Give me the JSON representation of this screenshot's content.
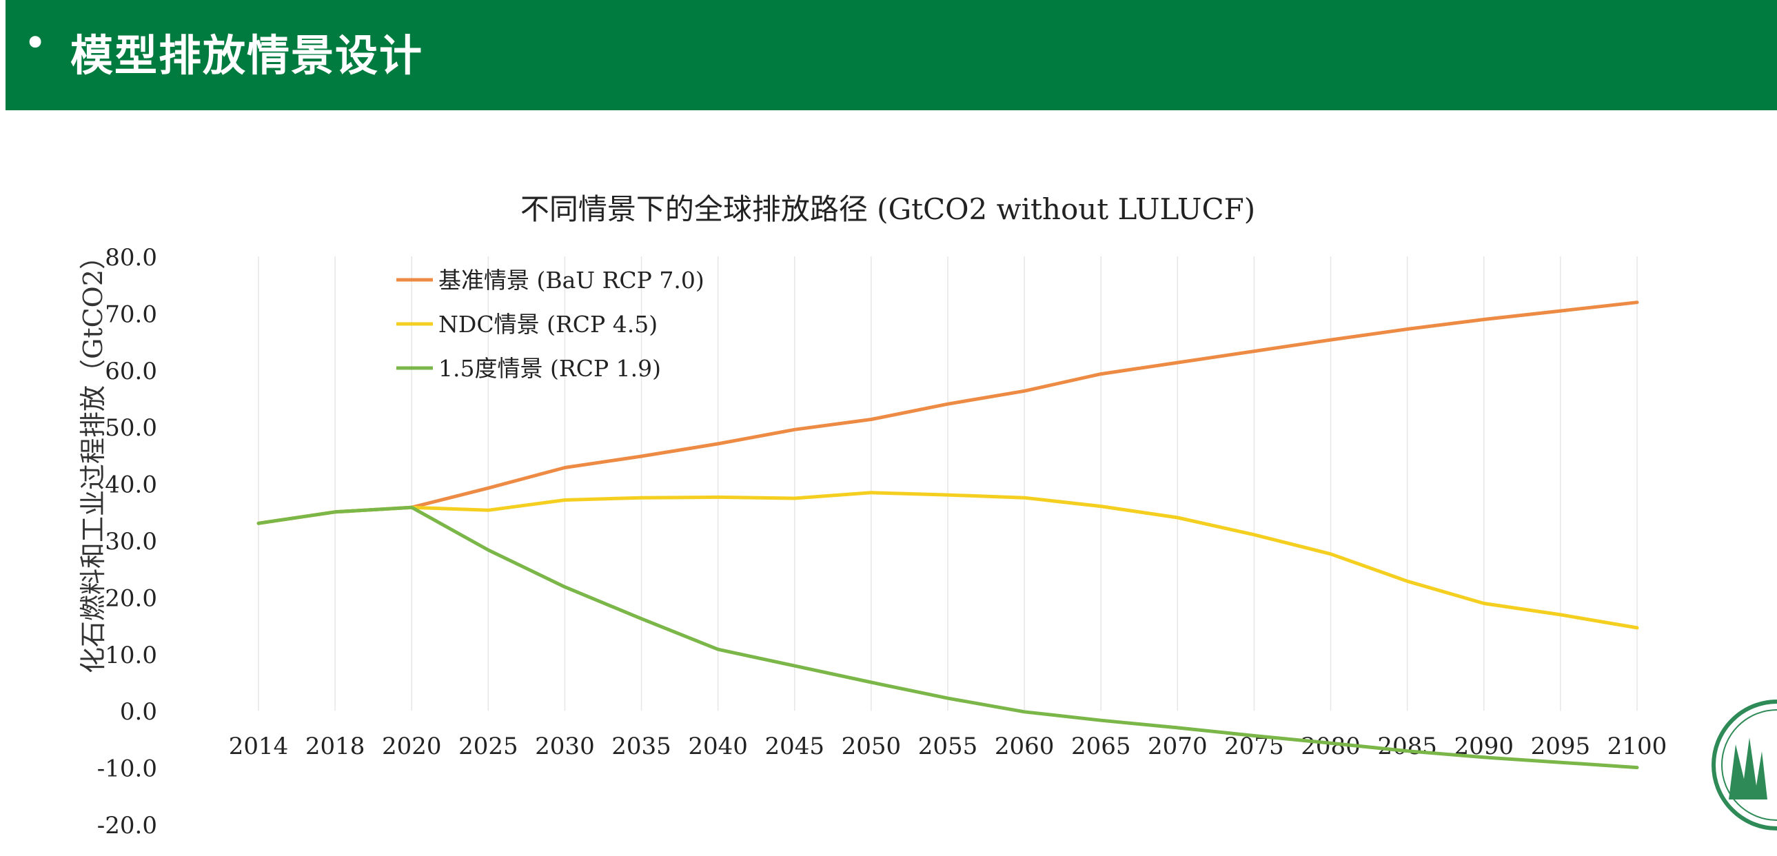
{
  "header": {
    "bullet": "•",
    "title": "模型排放情景设计",
    "bg_color": "#007b3f"
  },
  "chart_data": {
    "type": "line",
    "title": "不同情景下的全球排放路径 (GtCO2 without LULUCF)",
    "ylabel": "化石燃料和工业过程排放（GtCO2）",
    "xlabel": "",
    "categories": [
      "2014",
      "2018",
      "2020",
      "2025",
      "2030",
      "2035",
      "2040",
      "2045",
      "2050",
      "2055",
      "2060",
      "2065",
      "2070",
      "2075",
      "2080",
      "2085",
      "2090",
      "2095",
      "2100"
    ],
    "ylim": [
      -20,
      80
    ],
    "yticks": [
      "80.0",
      "70.0",
      "60.0",
      "50.0",
      "40.0",
      "30.0",
      "20.0",
      "10.0",
      "0.0",
      "-10.0",
      "-20.0"
    ],
    "grid": "vertical",
    "legend_position": "top-left",
    "series": [
      {
        "name": "基准情景 (BaU RCP 7.0)",
        "color": "#ed8b45",
        "values": [
          33.0,
          35.0,
          35.8,
          39.2,
          42.8,
          44.8,
          47.0,
          49.5,
          51.3,
          54.0,
          56.3,
          59.3,
          61.3,
          63.3,
          65.3,
          67.2,
          68.9,
          70.4,
          71.9
        ]
      },
      {
        "name": "NDC情景 (RCP 4.5)",
        "color": "#f5cf1f",
        "values": [
          33.0,
          35.0,
          35.8,
          35.3,
          37.1,
          37.5,
          37.6,
          37.4,
          38.4,
          38.0,
          37.5,
          36.0,
          34.0,
          31.0,
          27.6,
          22.8,
          18.9,
          16.9,
          14.6
        ]
      },
      {
        "name": "1.5度情景 (RCP 1.9)",
        "color": "#7ab648",
        "values": [
          33.0,
          35.0,
          35.8,
          28.3,
          21.8,
          16.2,
          10.8,
          7.9,
          5.0,
          2.2,
          -0.2,
          -1.7,
          -3.0,
          -4.4,
          -5.7,
          -7.1,
          -8.2,
          -9.1,
          -10.0
        ]
      }
    ]
  }
}
